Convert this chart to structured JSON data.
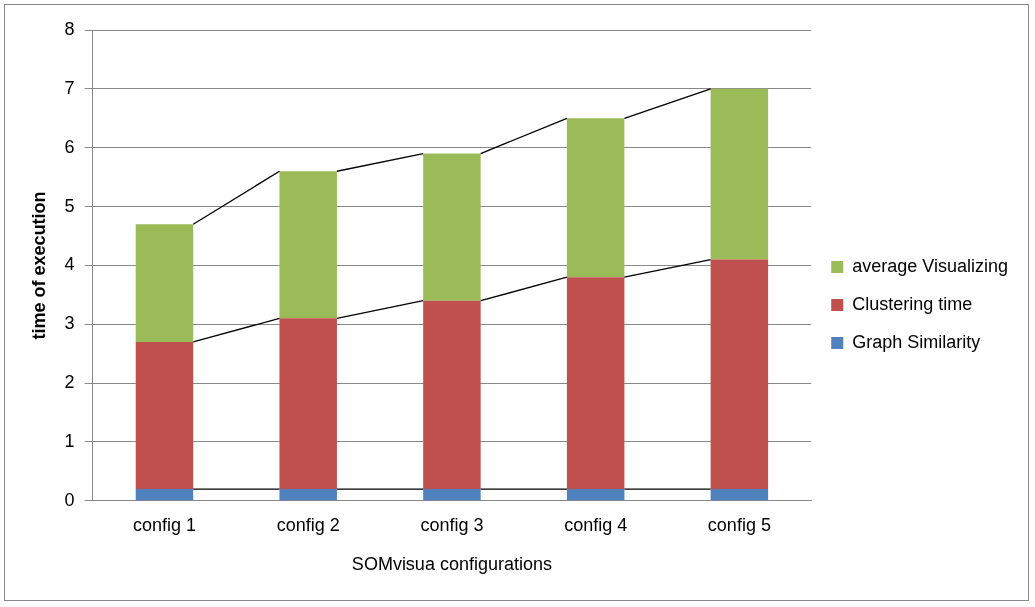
{
  "chart_data": {
    "type": "bar",
    "stacked": true,
    "xlabel": "SOMvisua configurations",
    "ylabel": "time of execution",
    "categories": [
      "config 1",
      "config 2",
      "config 3",
      "config 4",
      "config 5"
    ],
    "series": [
      {
        "name": "Graph Similarity",
        "color": "#4f81bd",
        "values": [
          0.2,
          0.2,
          0.2,
          0.2,
          0.2
        ]
      },
      {
        "name": "Clustering time",
        "color": "#c0504d",
        "values": [
          2.5,
          2.9,
          3.2,
          3.6,
          3.9
        ]
      },
      {
        "name": "average Visualizing",
        "color": "#9bbb59",
        "values": [
          2.0,
          2.5,
          2.5,
          2.7,
          2.9
        ]
      }
    ],
    "ylim": [
      0,
      8
    ],
    "yticks": [
      0,
      1,
      2,
      3,
      4,
      5,
      6,
      7,
      8
    ],
    "grid": "y",
    "legend": "right"
  }
}
